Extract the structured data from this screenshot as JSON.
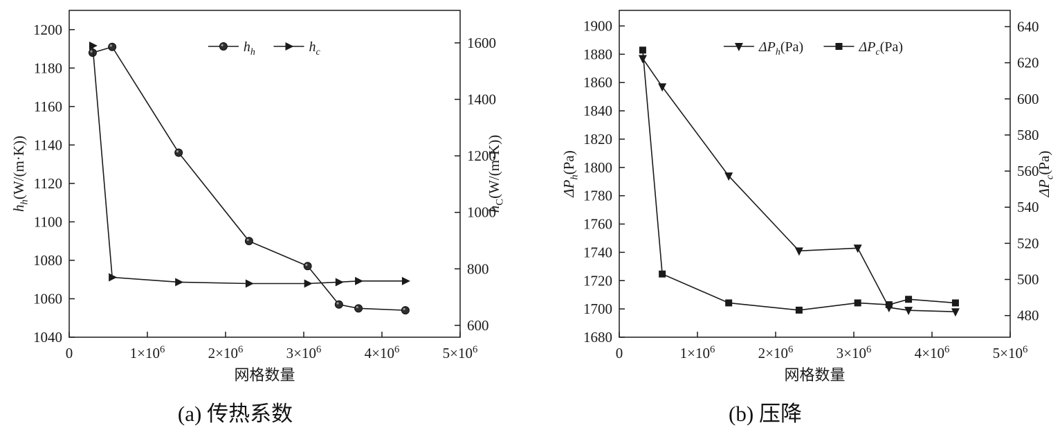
{
  "figure": {
    "background": "#ffffff",
    "ink_color": "#1a1a1a"
  },
  "chart_data": [
    {
      "type": "line",
      "caption": "(a) 传热系数",
      "xlabel": "网格数量",
      "xlim": [
        0,
        5000000
      ],
      "x_ticks": [
        {
          "v": 0,
          "label": [
            {
              "t": "0"
            }
          ]
        },
        {
          "v": 1000000,
          "label": [
            {
              "t": "1×10"
            },
            {
              "t": "6",
              "sup": true
            }
          ]
        },
        {
          "v": 2000000,
          "label": [
            {
              "t": "2×10"
            },
            {
              "t": "6",
              "sup": true
            }
          ]
        },
        {
          "v": 3000000,
          "label": [
            {
              "t": "3×10"
            },
            {
              "t": "6",
              "sup": true
            }
          ]
        },
        {
          "v": 4000000,
          "label": [
            {
              "t": "4×10"
            },
            {
              "t": "6",
              "sup": true
            }
          ]
        },
        {
          "v": 5000000,
          "label": [
            {
              "t": "5×10"
            },
            {
              "t": "6",
              "sup": true
            }
          ]
        }
      ],
      "left_axis": {
        "label_text": "h_h(W/(m·K))",
        "label": [
          {
            "t": "h",
            "i": true
          },
          {
            "t": "h",
            "i": true,
            "sub": true
          },
          {
            "t": "(W/(m·K))"
          }
        ],
        "lim": [
          1040,
          1210
        ],
        "ticks": [
          1040,
          1060,
          1080,
          1100,
          1120,
          1140,
          1160,
          1180,
          1200
        ]
      },
      "right_axis": {
        "label_text": "h_C(W/(m·K))",
        "label": [
          {
            "t": "h",
            "i": true
          },
          {
            "t": "C",
            "sub": true
          },
          {
            "t": "(W/(m·K))"
          }
        ],
        "lim": [
          558,
          1715
        ],
        "ticks": [
          600,
          800,
          1000,
          1200,
          1400,
          1600
        ]
      },
      "series": [
        {
          "name": "h_h",
          "axis": "left",
          "marker": "circle",
          "legend": [
            {
              "t": "h",
              "i": true
            },
            {
              "t": "h",
              "i": true,
              "sub": true
            }
          ],
          "x": [
            300000,
            550000,
            1400000,
            2300000,
            3050000,
            3450000,
            3700000,
            4300000
          ],
          "y": [
            1188,
            1191,
            1136,
            1090,
            1077,
            1057,
            1055,
            1054
          ]
        },
        {
          "name": "h_c",
          "axis": "right",
          "marker": "triangle-right",
          "legend": [
            {
              "t": "h",
              "i": true
            },
            {
              "t": "c",
              "i": true,
              "sub": true
            }
          ],
          "x": [
            300000,
            550000,
            1400000,
            2300000,
            3050000,
            3450000,
            3700000,
            4300000
          ],
          "y": [
            1590,
            770,
            753,
            748,
            748,
            753,
            757,
            757
          ]
        }
      ]
    },
    {
      "type": "line",
      "caption": "(b) 压降",
      "xlabel": "网格数量",
      "xlim": [
        0,
        5000000
      ],
      "x_ticks": [
        {
          "v": 0,
          "label": [
            {
              "t": "0"
            }
          ]
        },
        {
          "v": 1000000,
          "label": [
            {
              "t": "1×10"
            },
            {
              "t": "6",
              "sup": true
            }
          ]
        },
        {
          "v": 2000000,
          "label": [
            {
              "t": "2×10"
            },
            {
              "t": "6",
              "sup": true
            }
          ]
        },
        {
          "v": 3000000,
          "label": [
            {
              "t": "3×10"
            },
            {
              "t": "6",
              "sup": true
            }
          ]
        },
        {
          "v": 4000000,
          "label": [
            {
              "t": "4×10"
            },
            {
              "t": "6",
              "sup": true
            }
          ]
        },
        {
          "v": 5000000,
          "label": [
            {
              "t": "5×10"
            },
            {
              "t": "6",
              "sup": true
            }
          ]
        }
      ],
      "left_axis": {
        "label_text": "ΔP_h(Pa)",
        "label": [
          {
            "t": "ΔP",
            "i": true
          },
          {
            "t": "h",
            "i": true,
            "sub": true
          },
          {
            "t": "(Pa)"
          }
        ],
        "lim": [
          1680,
          1911
        ],
        "ticks": [
          1680,
          1700,
          1720,
          1740,
          1760,
          1780,
          1800,
          1820,
          1840,
          1860,
          1880,
          1900
        ]
      },
      "right_axis": {
        "label_text": "ΔP_c(Pa)",
        "label": [
          {
            "t": "ΔP",
            "i": true
          },
          {
            "t": "c",
            "i": true,
            "sub": true
          },
          {
            "t": "(Pa)"
          }
        ],
        "lim": [
          468,
          649
        ],
        "ticks": [
          480,
          500,
          520,
          540,
          560,
          580,
          600,
          620,
          640
        ]
      },
      "series": [
        {
          "name": "ΔP_h(Pa)",
          "axis": "left",
          "marker": "triangle-down",
          "legend": [
            {
              "t": "ΔP",
              "i": true
            },
            {
              "t": "h",
              "i": true,
              "sub": true
            },
            {
              "t": "(Pa)"
            }
          ],
          "x": [
            300000,
            550000,
            1400000,
            2300000,
            3050000,
            3450000,
            3700000,
            4300000
          ],
          "y": [
            1877,
            1857,
            1794,
            1741,
            1743,
            1701,
            1699,
            1698
          ]
        },
        {
          "name": "ΔP_c(Pa)",
          "axis": "right",
          "marker": "square",
          "legend": [
            {
              "t": "ΔP",
              "i": true
            },
            {
              "t": "c",
              "i": true,
              "sub": true
            },
            {
              "t": "(Pa)"
            }
          ],
          "x": [
            300000,
            550000,
            1400000,
            2300000,
            3050000,
            3450000,
            3700000,
            4300000
          ],
          "y": [
            627,
            503,
            487,
            483,
            487,
            486,
            489,
            487
          ]
        }
      ]
    }
  ]
}
